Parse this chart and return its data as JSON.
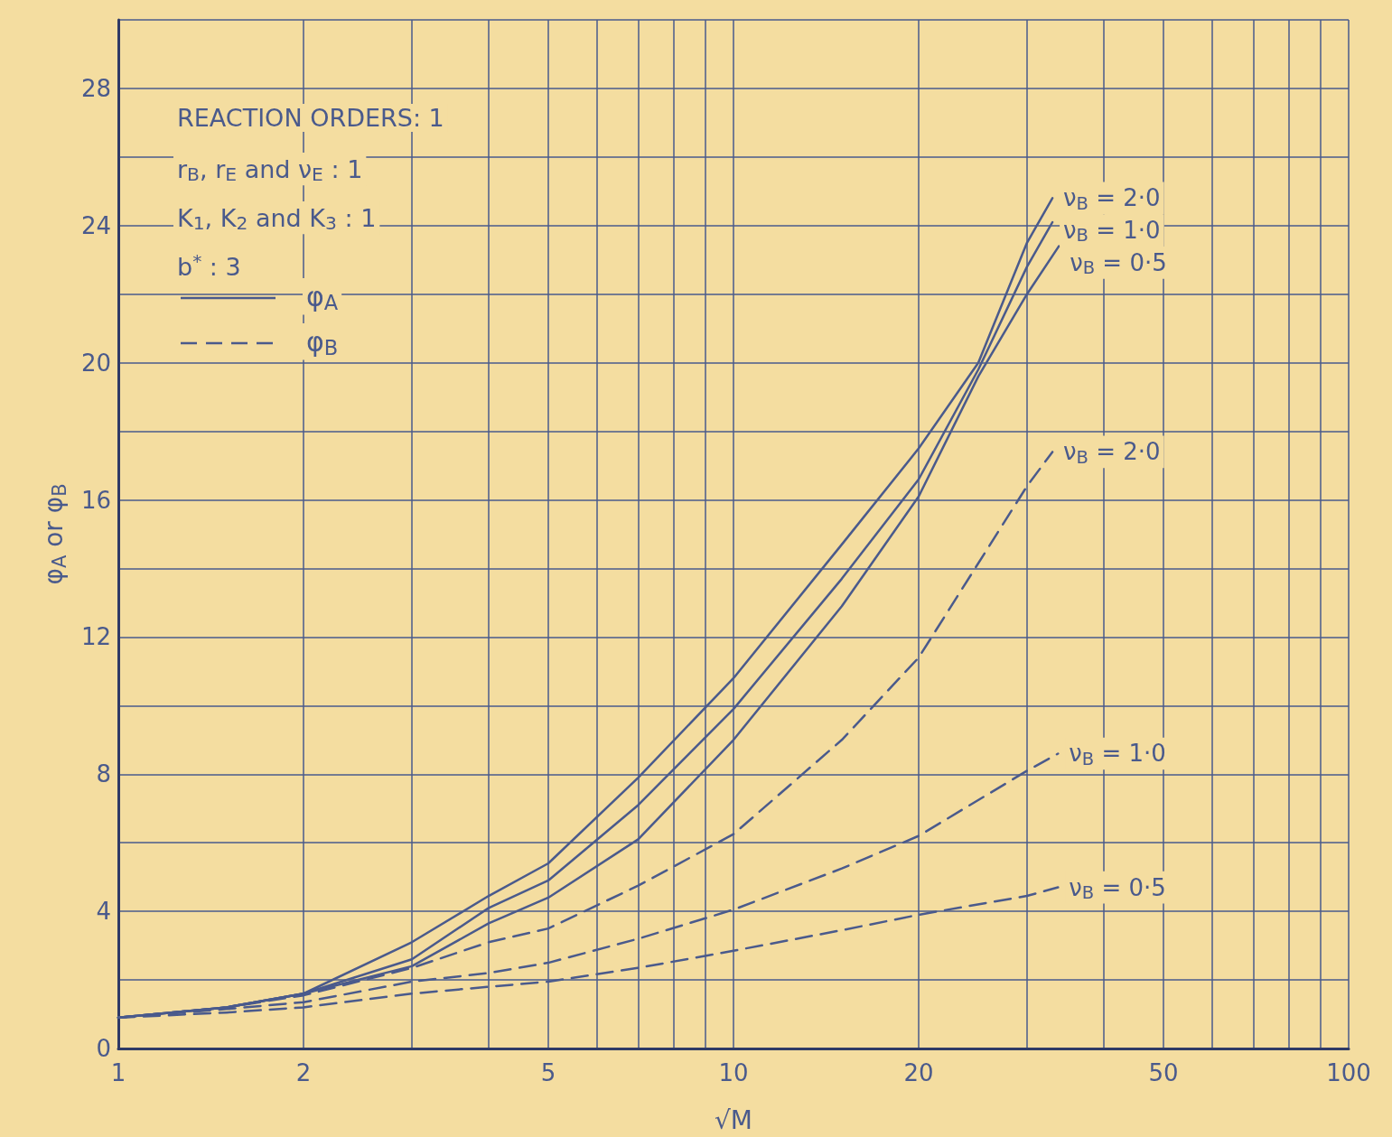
{
  "chart_data": {
    "type": "line",
    "xlabel": "√M",
    "ylabel": "φ$_{A}$ or φ$_{B}$",
    "log": "x",
    "grid": true,
    "marker": "none",
    "xlim": [
      1,
      100
    ],
    "xticks": [
      1,
      2,
      {
        "value": 3,
        "label": null
      },
      {
        "value": 4,
        "label": null
      },
      5,
      {
        "value": 6,
        "label": null
      },
      {
        "value": 7,
        "label": null
      },
      {
        "value": 8,
        "label": null
      },
      {
        "value": 9,
        "label": null
      },
      10,
      20,
      {
        "value": 30,
        "label": null
      },
      {
        "value": 40,
        "label": null
      },
      50,
      {
        "value": 60,
        "label": null
      },
      {
        "value": 70,
        "label": null
      },
      {
        "value": 80,
        "label": null
      },
      {
        "value": 90,
        "label": null
      },
      100
    ],
    "ylim": [
      0,
      30
    ],
    "yticks": [
      0,
      {
        "value": 2,
        "label": null
      },
      4,
      {
        "value": 6,
        "label": null
      },
      8,
      {
        "value": 10,
        "label": null
      },
      12,
      {
        "value": 14,
        "label": null
      },
      16,
      {
        "value": 18,
        "label": null
      },
      20,
      {
        "value": 22,
        "label": null
      },
      24,
      {
        "value": 26,
        "label": null
      },
      28,
      {
        "value": 30,
        "label": null
      }
    ],
    "annotations": [
      "REACTION ORDERS: 1",
      "r$_{B}$, r$_{E}$ and ν$_{E}$ : 1",
      "K$_{1}$, K$_{2}$ and K$_{3}$ : 1",
      "b$^{*}$ : 3",
      "φ$_{A}$",
      "φ$_{B}$"
    ],
    "series": [
      {
        "name": "ν$_{B}$ = 2·0",
        "color": "#4a5a8c",
        "line_style": "solid",
        "x": [
          1,
          1.5,
          2,
          3,
          4,
          5,
          7,
          10,
          15,
          20,
          25,
          30,
          33
        ],
        "values": [
          0.9,
          1.2,
          1.6,
          3.1,
          4.45,
          5.4,
          7.9,
          10.8,
          14.7,
          17.5,
          20.0,
          23.5,
          24.8
        ]
      },
      {
        "name": "ν$_{B}$ = 1·0",
        "color": "#4a5a8c",
        "line_style": "solid",
        "x": [
          1,
          1.5,
          2,
          3,
          4,
          5,
          7,
          10,
          15,
          20,
          25,
          30,
          33
        ],
        "values": [
          0.9,
          1.2,
          1.6,
          2.6,
          4.1,
          4.9,
          7.1,
          9.9,
          13.7,
          16.6,
          19.8,
          22.8,
          24.1
        ]
      },
      {
        "name": "ν$_{B}$ = 0·5",
        "color": "#4a5a8c",
        "line_style": "solid",
        "x": [
          1,
          1.5,
          2,
          3,
          4,
          5,
          7,
          10,
          15,
          20,
          25,
          30,
          33.8
        ],
        "values": [
          0.9,
          1.2,
          1.6,
          2.4,
          3.65,
          4.4,
          6.1,
          9.0,
          12.9,
          16.1,
          19.6,
          22.0,
          23.4
        ]
      },
      {
        "name": "ν$_{B}$ = 2·0",
        "color": "#4a5a8c",
        "line_style": "dashed",
        "x": [
          1,
          1.5,
          2,
          3,
          4,
          5,
          7,
          10,
          15,
          20,
          30,
          33
        ],
        "values": [
          0.9,
          1.2,
          1.55,
          2.35,
          3.1,
          3.5,
          4.75,
          6.25,
          9.0,
          11.4,
          16.4,
          17.4
        ]
      },
      {
        "name": "ν$_{B}$ = 1·0",
        "color": "#4a5a8c",
        "line_style": "dashed",
        "x": [
          1,
          1.5,
          2,
          3,
          4,
          5,
          7,
          10,
          15,
          20,
          30,
          33.7
        ],
        "values": [
          0.9,
          1.15,
          1.35,
          1.95,
          2.2,
          2.5,
          3.2,
          4.05,
          5.25,
          6.2,
          8.1,
          8.6
        ]
      },
      {
        "name": "ν$_{B}$ = 0·5",
        "color": "#4a5a8c",
        "line_style": "dashed",
        "x": [
          1,
          1.5,
          2,
          3,
          4,
          5,
          7,
          10,
          15,
          20,
          30,
          33.7
        ],
        "values": [
          0.9,
          1.05,
          1.2,
          1.6,
          1.8,
          1.95,
          2.35,
          2.85,
          3.45,
          3.9,
          4.45,
          4.7
        ]
      }
    ]
  }
}
